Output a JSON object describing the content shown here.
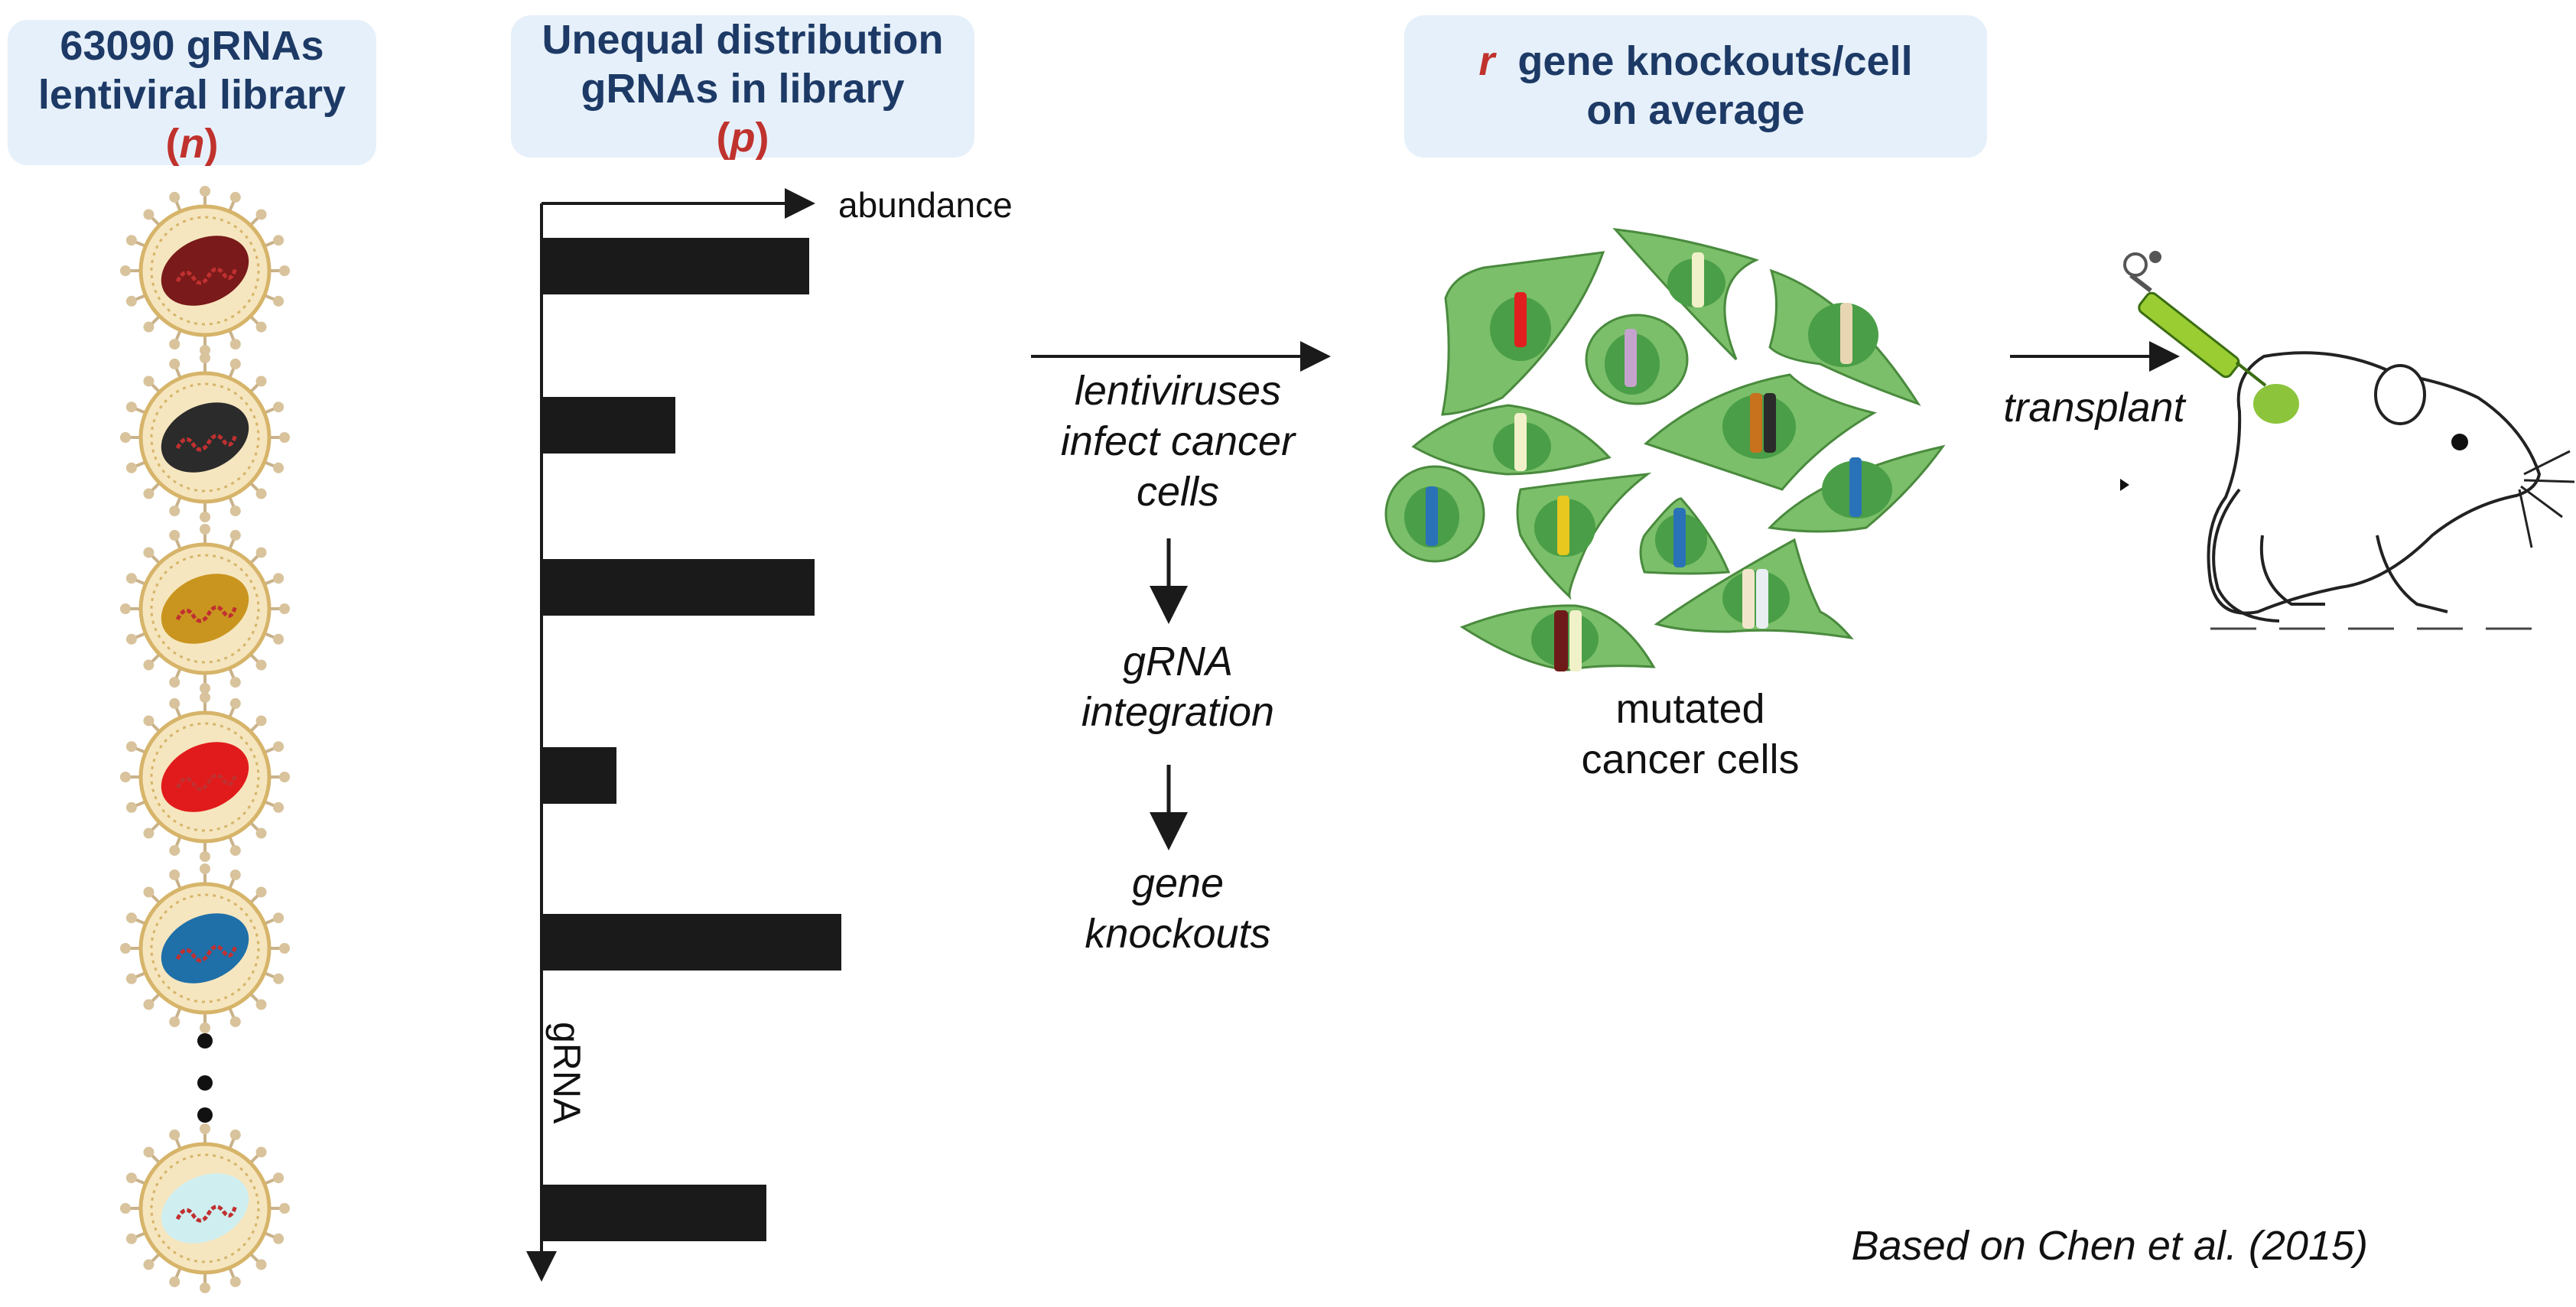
{
  "headers": {
    "library": {
      "line1": "63090 gRNAs",
      "line2": "lentiviral library",
      "var": "n"
    },
    "distribution": {
      "line1": "Unequal distribution",
      "line2": "gRNAs in library",
      "var": "p"
    },
    "knockouts": {
      "var": "r",
      "line1": "gene knockouts/cell",
      "line2": "on average"
    }
  },
  "virus_colors": [
    "#7a1a1a",
    "#2b2b2b",
    "#c9951f",
    "#e11b1b",
    "#1f6fa8",
    "#cfeef0"
  ],
  "chart_data": {
    "type": "bar",
    "orientation": "horizontal",
    "xlabel": "abundance",
    "ylabel": "gRNA",
    "categories": [
      "",
      "",
      "",
      "",
      "",
      ""
    ],
    "values": [
      10.0,
      5.0,
      10.2,
      2.8,
      11.2,
      8.4
    ],
    "xlim": [
      0,
      12
    ],
    "color": "#1a1a1a"
  },
  "process": {
    "step1": [
      "lentiviruses",
      "infect cancer",
      "cells"
    ],
    "step2": [
      "gRNA",
      "integration"
    ],
    "step3": [
      "gene",
      "knockouts"
    ]
  },
  "cells_label": [
    "mutated",
    "cancer cells"
  ],
  "transplant_label": "transplant",
  "citation": "Based on Chen et al. (2015)"
}
